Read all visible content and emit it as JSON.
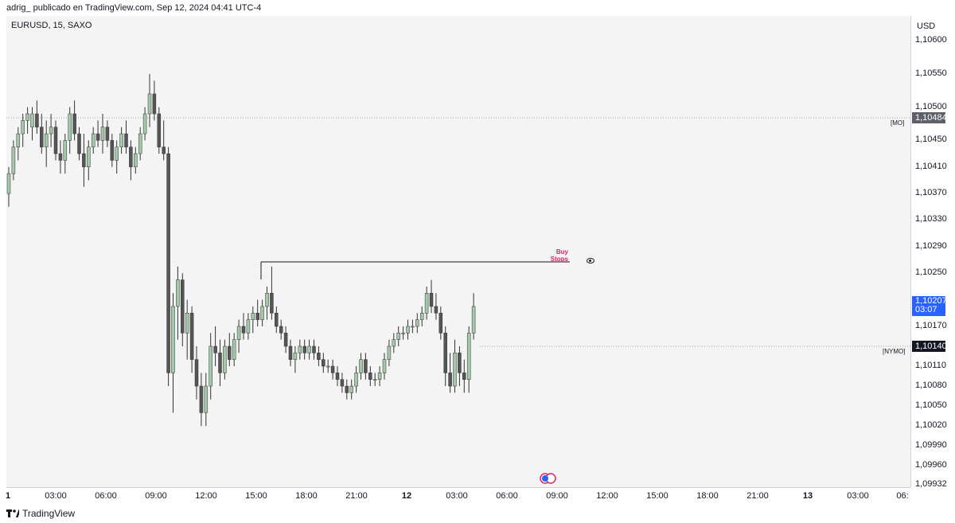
{
  "header": {
    "publisher_text": "adrig_ publicado en TradingView.com, Sep 12, 2024 04:41 UTC-4"
  },
  "symbol": {
    "legend": "EURUSD, 15, SAXO"
  },
  "price_axis": {
    "currency": "USD",
    "labels": [
      "1,10600",
      "1,10550",
      "1,10500",
      "1,10450",
      "1,10410",
      "1,10370",
      "1,10330",
      "1,10290",
      "1,10250",
      "1,10170",
      "1,10110",
      "1,10080",
      "1,10050",
      "1,10020",
      "1,09990",
      "1,09960",
      "1,09932"
    ],
    "tags": {
      "mo": {
        "value": "1,10484",
        "text": "[MO]"
      },
      "current": {
        "value": "1,10207",
        "countdown": "03:07",
        "color": "#2962ff"
      },
      "nymo": {
        "value": "1,10140",
        "text": "[NYMO]"
      }
    }
  },
  "time_axis": {
    "labels": [
      {
        "text": "1",
        "bold": true
      },
      {
        "text": "03:00"
      },
      {
        "text": "06:00"
      },
      {
        "text": "09:00"
      },
      {
        "text": "12:00"
      },
      {
        "text": "15:00"
      },
      {
        "text": "18:00"
      },
      {
        "text": "21:00"
      },
      {
        "text": "12",
        "bold": true
      },
      {
        "text": "03:00"
      },
      {
        "text": "06:00"
      },
      {
        "text": "09:00"
      },
      {
        "text": "12:00"
      },
      {
        "text": "15:00"
      },
      {
        "text": "18:00"
      },
      {
        "text": "21:00"
      },
      {
        "text": "13",
        "bold": true
      },
      {
        "text": "03:00"
      },
      {
        "text": "06:"
      }
    ]
  },
  "annotations": {
    "buy_stops_line1": "Buy",
    "buy_stops_line2": "Stops",
    "buy_stops_color": "#e0245e"
  },
  "footer": {
    "brand": "TradingView"
  },
  "chart_data": {
    "type": "candlestick",
    "up_color": "#a5c8a8",
    "down_color": "#555555",
    "candles": [
      {
        "o": 1.1037,
        "h": 1.1041,
        "l": 1.1035,
        "c": 1.104
      },
      {
        "o": 1.104,
        "h": 1.1045,
        "l": 1.1039,
        "c": 1.1044
      },
      {
        "o": 1.1044,
        "h": 1.1047,
        "l": 1.1042,
        "c": 1.1046
      },
      {
        "o": 1.1046,
        "h": 1.1049,
        "l": 1.1044,
        "c": 1.1048
      },
      {
        "o": 1.1048,
        "h": 1.105,
        "l": 1.1046,
        "c": 1.1049
      },
      {
        "o": 1.1047,
        "h": 1.105,
        "l": 1.1045,
        "c": 1.1049
      },
      {
        "o": 1.1049,
        "h": 1.1051,
        "l": 1.1046,
        "c": 1.1047
      },
      {
        "o": 1.1047,
        "h": 1.1049,
        "l": 1.1043,
        "c": 1.1044
      },
      {
        "o": 1.1044,
        "h": 1.1048,
        "l": 1.1041,
        "c": 1.1046
      },
      {
        "o": 1.1046,
        "h": 1.1049,
        "l": 1.1044,
        "c": 1.1047
      },
      {
        "o": 1.1047,
        "h": 1.1048,
        "l": 1.1042,
        "c": 1.1043
      },
      {
        "o": 1.1043,
        "h": 1.1045,
        "l": 1.104,
        "c": 1.1042
      },
      {
        "o": 1.1042,
        "h": 1.1046,
        "l": 1.104,
        "c": 1.1045
      },
      {
        "o": 1.1045,
        "h": 1.105,
        "l": 1.1043,
        "c": 1.1049
      },
      {
        "o": 1.1049,
        "h": 1.1051,
        "l": 1.1045,
        "c": 1.1046
      },
      {
        "o": 1.1046,
        "h": 1.1047,
        "l": 1.1042,
        "c": 1.1043
      },
      {
        "o": 1.1043,
        "h": 1.1046,
        "l": 1.1038,
        "c": 1.1041
      },
      {
        "o": 1.1041,
        "h": 1.1045,
        "l": 1.1039,
        "c": 1.1044
      },
      {
        "o": 1.1044,
        "h": 1.1047,
        "l": 1.1043,
        "c": 1.1046
      },
      {
        "o": 1.1046,
        "h": 1.1048,
        "l": 1.1044,
        "c": 1.1045
      },
      {
        "o": 1.1045,
        "h": 1.1049,
        "l": 1.1043,
        "c": 1.1047
      },
      {
        "o": 1.1047,
        "h": 1.1048,
        "l": 1.1044,
        "c": 1.1045
      },
      {
        "o": 1.1045,
        "h": 1.1046,
        "l": 1.1041,
        "c": 1.1042
      },
      {
        "o": 1.1042,
        "h": 1.1045,
        "l": 1.104,
        "c": 1.1044
      },
      {
        "o": 1.1044,
        "h": 1.1047,
        "l": 1.1043,
        "c": 1.1046
      },
      {
        "o": 1.1046,
        "h": 1.1048,
        "l": 1.1043,
        "c": 1.1044
      },
      {
        "o": 1.1044,
        "h": 1.1045,
        "l": 1.1039,
        "c": 1.1041
      },
      {
        "o": 1.1041,
        "h": 1.1044,
        "l": 1.104,
        "c": 1.1043
      },
      {
        "o": 1.1043,
        "h": 1.1047,
        "l": 1.1042,
        "c": 1.1046
      },
      {
        "o": 1.1046,
        "h": 1.105,
        "l": 1.1045,
        "c": 1.1049
      },
      {
        "o": 1.1049,
        "h": 1.1055,
        "l": 1.1047,
        "c": 1.1052
      },
      {
        "o": 1.1052,
        "h": 1.1054,
        "l": 1.1048,
        "c": 1.1049
      },
      {
        "o": 1.1049,
        "h": 1.105,
        "l": 1.1043,
        "c": 1.1044
      },
      {
        "o": 1.1044,
        "h": 1.1048,
        "l": 1.1042,
        "c": 1.1043
      },
      {
        "o": 1.1043,
        "h": 1.1044,
        "l": 1.1008,
        "c": 1.101
      },
      {
        "o": 1.101,
        "h": 1.1022,
        "l": 1.1004,
        "c": 1.102
      },
      {
        "o": 1.102,
        "h": 1.1026,
        "l": 1.1015,
        "c": 1.1024
      },
      {
        "o": 1.1024,
        "h": 1.1025,
        "l": 1.1014,
        "c": 1.1016
      },
      {
        "o": 1.1016,
        "h": 1.1021,
        "l": 1.1012,
        "c": 1.1019
      },
      {
        "o": 1.1019,
        "h": 1.102,
        "l": 1.101,
        "c": 1.1012
      },
      {
        "o": 1.1012,
        "h": 1.1014,
        "l": 1.1006,
        "c": 1.1008
      },
      {
        "o": 1.1008,
        "h": 1.101,
        "l": 1.1002,
        "c": 1.1004
      },
      {
        "o": 1.1004,
        "h": 1.101,
        "l": 1.1002,
        "c": 1.1008
      },
      {
        "o": 1.1008,
        "h": 1.1016,
        "l": 1.1006,
        "c": 1.1014
      },
      {
        "o": 1.1014,
        "h": 1.1017,
        "l": 1.1011,
        "c": 1.1013
      },
      {
        "o": 1.1013,
        "h": 1.1015,
        "l": 1.1008,
        "c": 1.101
      },
      {
        "o": 1.101,
        "h": 1.1015,
        "l": 1.1009,
        "c": 1.1014
      },
      {
        "o": 1.1014,
        "h": 1.1016,
        "l": 1.1011,
        "c": 1.1012
      },
      {
        "o": 1.1012,
        "h": 1.1016,
        "l": 1.1011,
        "c": 1.1015
      },
      {
        "o": 1.1015,
        "h": 1.1018,
        "l": 1.1013,
        "c": 1.1017
      },
      {
        "o": 1.1017,
        "h": 1.1019,
        "l": 1.1015,
        "c": 1.1016
      },
      {
        "o": 1.1016,
        "h": 1.1019,
        "l": 1.1015,
        "c": 1.1018
      },
      {
        "o": 1.1018,
        "h": 1.102,
        "l": 1.1016,
        "c": 1.1019
      },
      {
        "o": 1.1019,
        "h": 1.1021,
        "l": 1.1017,
        "c": 1.1018
      },
      {
        "o": 1.1018,
        "h": 1.1021,
        "l": 1.1017,
        "c": 1.102
      },
      {
        "o": 1.102,
        "h": 1.1023,
        "l": 1.1018,
        "c": 1.1022
      },
      {
        "o": 1.1022,
        "h": 1.1026,
        "l": 1.1018,
        "c": 1.1019
      },
      {
        "o": 1.1019,
        "h": 1.102,
        "l": 1.1016,
        "c": 1.1017
      },
      {
        "o": 1.1017,
        "h": 1.1018,
        "l": 1.1015,
        "c": 1.1016
      },
      {
        "o": 1.1016,
        "h": 1.1017,
        "l": 1.1013,
        "c": 1.1014
      },
      {
        "o": 1.1014,
        "h": 1.1015,
        "l": 1.1011,
        "c": 1.1012
      },
      {
        "o": 1.1012,
        "h": 1.1014,
        "l": 1.101,
        "c": 1.1013
      },
      {
        "o": 1.1013,
        "h": 1.1015,
        "l": 1.1012,
        "c": 1.1014
      },
      {
        "o": 1.1014,
        "h": 1.1015,
        "l": 1.1012,
        "c": 1.1013
      },
      {
        "o": 1.1013,
        "h": 1.1015,
        "l": 1.1012,
        "c": 1.1014
      },
      {
        "o": 1.1014,
        "h": 1.1015,
        "l": 1.1012,
        "c": 1.1013
      },
      {
        "o": 1.1013,
        "h": 1.1014,
        "l": 1.1011,
        "c": 1.1012
      },
      {
        "o": 1.1012,
        "h": 1.1013,
        "l": 1.101,
        "c": 1.1011
      },
      {
        "o": 1.1011,
        "h": 1.1012,
        "l": 1.101,
        "c": 1.1011
      },
      {
        "o": 1.1011,
        "h": 1.1012,
        "l": 1.1009,
        "c": 1.101
      },
      {
        "o": 1.101,
        "h": 1.1011,
        "l": 1.1008,
        "c": 1.1009
      },
      {
        "o": 1.1009,
        "h": 1.101,
        "l": 1.1007,
        "c": 1.1008
      },
      {
        "o": 1.1008,
        "h": 1.1009,
        "l": 1.1006,
        "c": 1.1007
      },
      {
        "o": 1.1007,
        "h": 1.1009,
        "l": 1.1006,
        "c": 1.1008
      },
      {
        "o": 1.1008,
        "h": 1.1011,
        "l": 1.1007,
        "c": 1.101
      },
      {
        "o": 1.101,
        "h": 1.1013,
        "l": 1.1009,
        "c": 1.1012
      },
      {
        "o": 1.1012,
        "h": 1.1013,
        "l": 1.1009,
        "c": 1.101
      },
      {
        "o": 1.101,
        "h": 1.1011,
        "l": 1.1008,
        "c": 1.1009
      },
      {
        "o": 1.1009,
        "h": 1.101,
        "l": 1.1008,
        "c": 1.1009
      },
      {
        "o": 1.1009,
        "h": 1.1011,
        "l": 1.1008,
        "c": 1.101
      },
      {
        "o": 1.101,
        "h": 1.1013,
        "l": 1.1009,
        "c": 1.1012
      },
      {
        "o": 1.1012,
        "h": 1.1015,
        "l": 1.1011,
        "c": 1.1014
      },
      {
        "o": 1.1014,
        "h": 1.1016,
        "l": 1.1013,
        "c": 1.1015
      },
      {
        "o": 1.1015,
        "h": 1.1017,
        "l": 1.1014,
        "c": 1.1016
      },
      {
        "o": 1.1016,
        "h": 1.1017,
        "l": 1.1015,
        "c": 1.1016
      },
      {
        "o": 1.1016,
        "h": 1.1018,
        "l": 1.1015,
        "c": 1.1017
      },
      {
        "o": 1.1017,
        "h": 1.1018,
        "l": 1.1016,
        "c": 1.1017
      },
      {
        "o": 1.1017,
        "h": 1.1019,
        "l": 1.1016,
        "c": 1.1018
      },
      {
        "o": 1.1018,
        "h": 1.102,
        "l": 1.1017,
        "c": 1.1019
      },
      {
        "o": 1.1019,
        "h": 1.1023,
        "l": 1.1018,
        "c": 1.1022
      },
      {
        "o": 1.1022,
        "h": 1.1024,
        "l": 1.1019,
        "c": 1.102
      },
      {
        "o": 1.102,
        "h": 1.1022,
        "l": 1.1018,
        "c": 1.1019
      },
      {
        "o": 1.1019,
        "h": 1.102,
        "l": 1.1015,
        "c": 1.1016
      },
      {
        "o": 1.1016,
        "h": 1.1017,
        "l": 1.1008,
        "c": 1.101
      },
      {
        "o": 1.101,
        "h": 1.1013,
        "l": 1.1007,
        "c": 1.1008
      },
      {
        "o": 1.1008,
        "h": 1.1015,
        "l": 1.1007,
        "c": 1.1013
      },
      {
        "o": 1.1013,
        "h": 1.1014,
        "l": 1.1008,
        "c": 1.101
      },
      {
        "o": 1.101,
        "h": 1.1012,
        "l": 1.1007,
        "c": 1.1009
      },
      {
        "o": 1.1009,
        "h": 1.1017,
        "l": 1.1007,
        "c": 1.1016
      },
      {
        "o": 1.1016,
        "h": 1.1022,
        "l": 1.1015,
        "c": 1.102
      }
    ]
  }
}
